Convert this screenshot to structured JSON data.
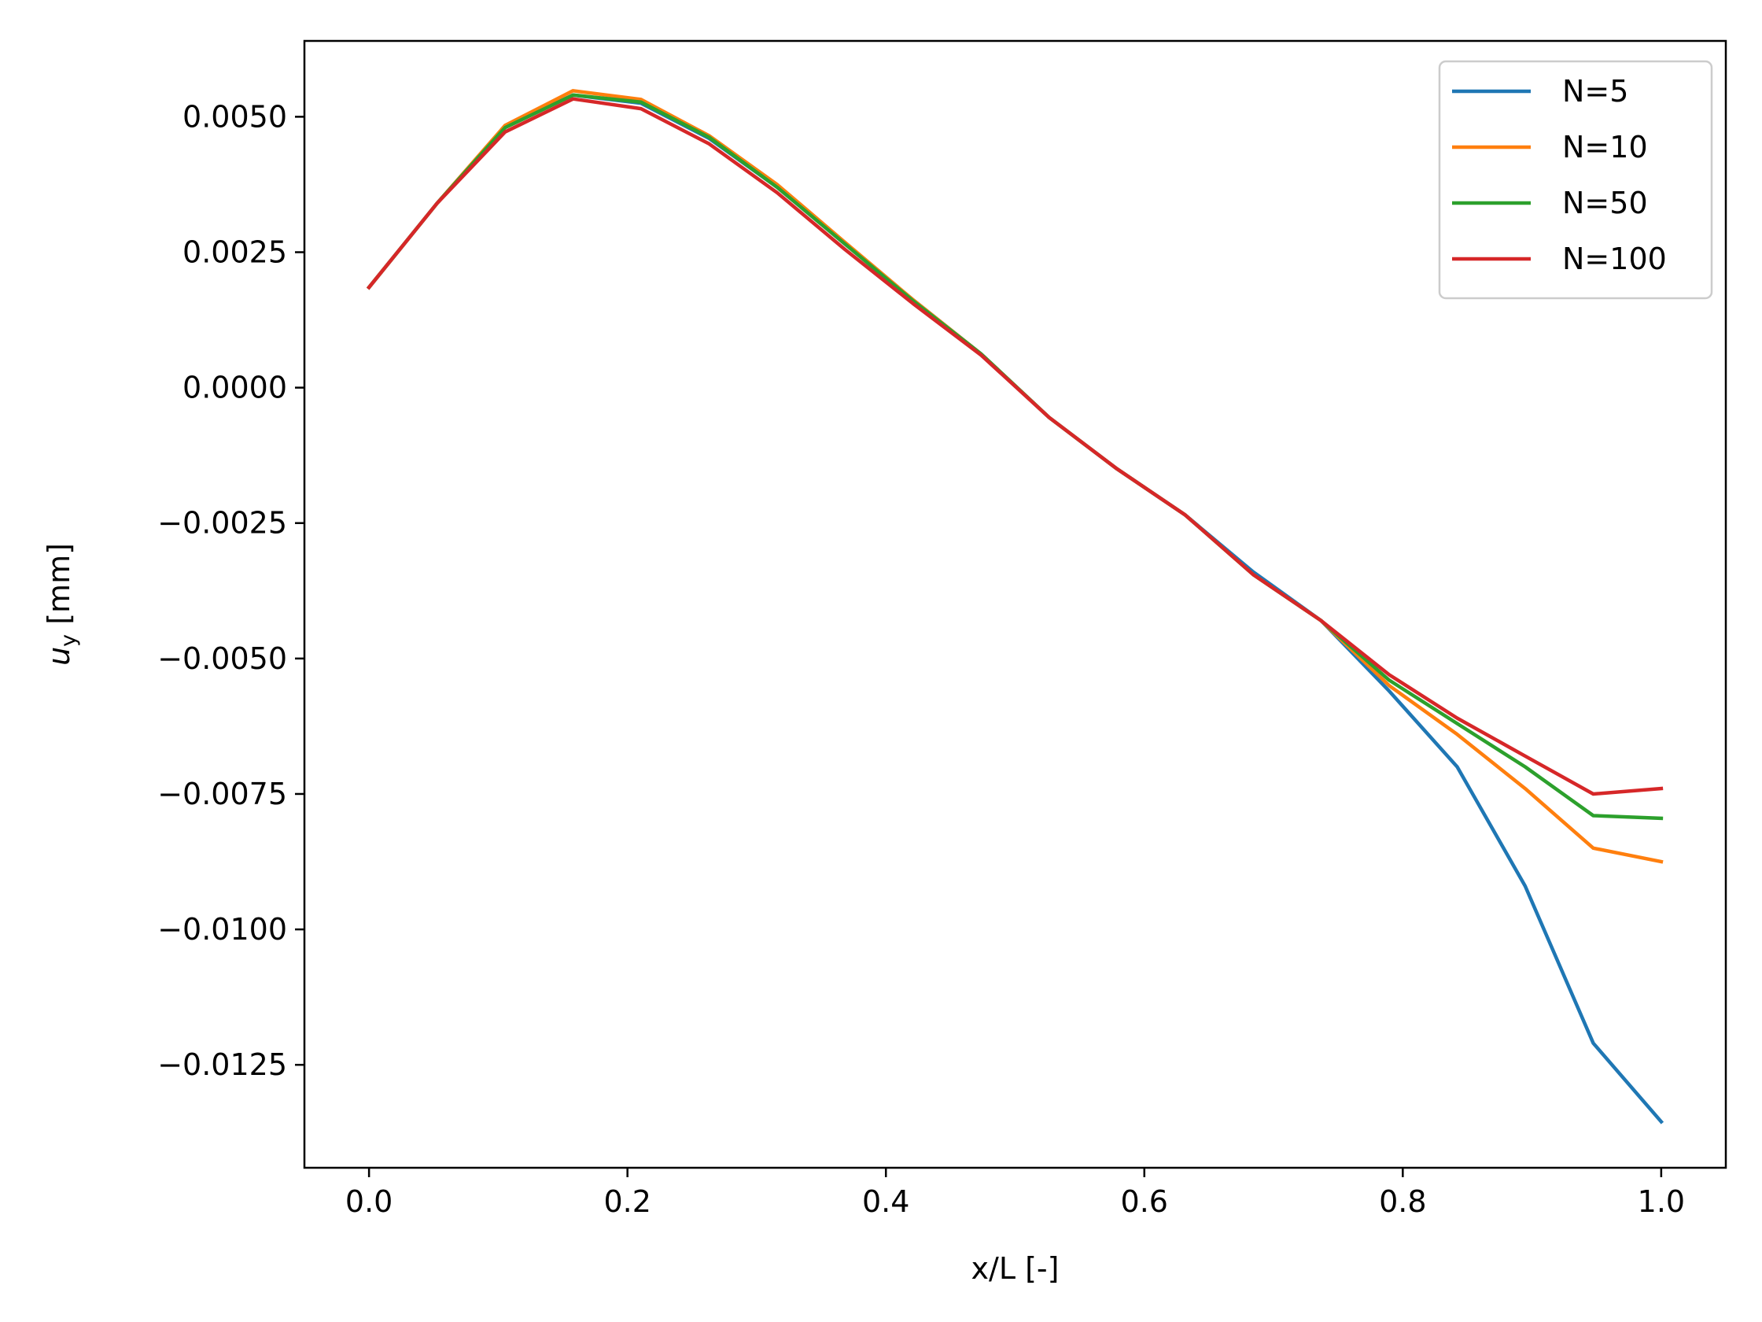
{
  "chart_data": {
    "type": "line",
    "title": "",
    "xlabel": "x/L [-]",
    "ylabel_main": "u",
    "ylabel_sub": "y",
    "ylabel_rest": " [mm]",
    "xlim": [
      -0.05,
      1.05
    ],
    "ylim": [
      -0.0144,
      0.0064
    ],
    "x_ticks": [
      0.0,
      0.2,
      0.4,
      0.6,
      0.8,
      1.0
    ],
    "x_tick_labels": [
      "0.0",
      "0.2",
      "0.4",
      "0.6",
      "0.8",
      "1.0"
    ],
    "y_ticks": [
      0.005,
      0.0025,
      0.0,
      -0.0025,
      -0.005,
      -0.0075,
      -0.01,
      -0.0125
    ],
    "y_tick_labels": [
      "0.0050",
      "0.0025",
      "0.0000",
      "−0.0025",
      "−0.0050",
      "−0.0075",
      "−0.0100",
      "−0.0125"
    ],
    "grid": false,
    "legend_position": "top-right",
    "x": [
      0.0,
      0.0526,
      0.1053,
      0.1579,
      0.2105,
      0.2632,
      0.3158,
      0.3684,
      0.4211,
      0.4737,
      0.5263,
      0.5789,
      0.6316,
      0.6842,
      0.7368,
      0.7895,
      0.8421,
      0.8947,
      0.9474,
      1.0
    ],
    "series": [
      {
        "name": "N=5",
        "color": "#1f77b4",
        "values": [
          0.00185,
          0.0034,
          0.00482,
          0.0054,
          0.00525,
          0.0046,
          0.0037,
          0.00265,
          0.00162,
          0.00062,
          -0.00055,
          -0.0015,
          -0.00235,
          -0.0034,
          -0.0043,
          -0.0056,
          -0.007,
          -0.0092,
          -0.0121,
          -0.01355
        ]
      },
      {
        "name": "N=10",
        "color": "#ff7f0e",
        "values": [
          0.00185,
          0.0034,
          0.00484,
          0.00548,
          0.00532,
          0.00465,
          0.00375,
          0.00268,
          0.00162,
          0.00062,
          -0.00055,
          -0.0015,
          -0.00235,
          -0.00345,
          -0.0043,
          -0.0055,
          -0.0064,
          -0.0074,
          -0.0085,
          -0.00875
        ]
      },
      {
        "name": "N=50",
        "color": "#2ca02c",
        "values": [
          0.00185,
          0.0034,
          0.0048,
          0.0054,
          0.00527,
          0.00462,
          0.0037,
          0.00265,
          0.0016,
          0.00062,
          -0.00055,
          -0.0015,
          -0.00235,
          -0.00345,
          -0.0043,
          -0.0054,
          -0.0062,
          -0.007,
          -0.0079,
          -0.00795
        ]
      },
      {
        "name": "N=100",
        "color": "#d62728",
        "values": [
          0.00185,
          0.0034,
          0.00472,
          0.00533,
          0.00515,
          0.0045,
          0.0036,
          0.00255,
          0.00155,
          0.0006,
          -0.00055,
          -0.0015,
          -0.00235,
          -0.00345,
          -0.0043,
          -0.0053,
          -0.0061,
          -0.0068,
          -0.0075,
          -0.0074
        ]
      }
    ]
  }
}
